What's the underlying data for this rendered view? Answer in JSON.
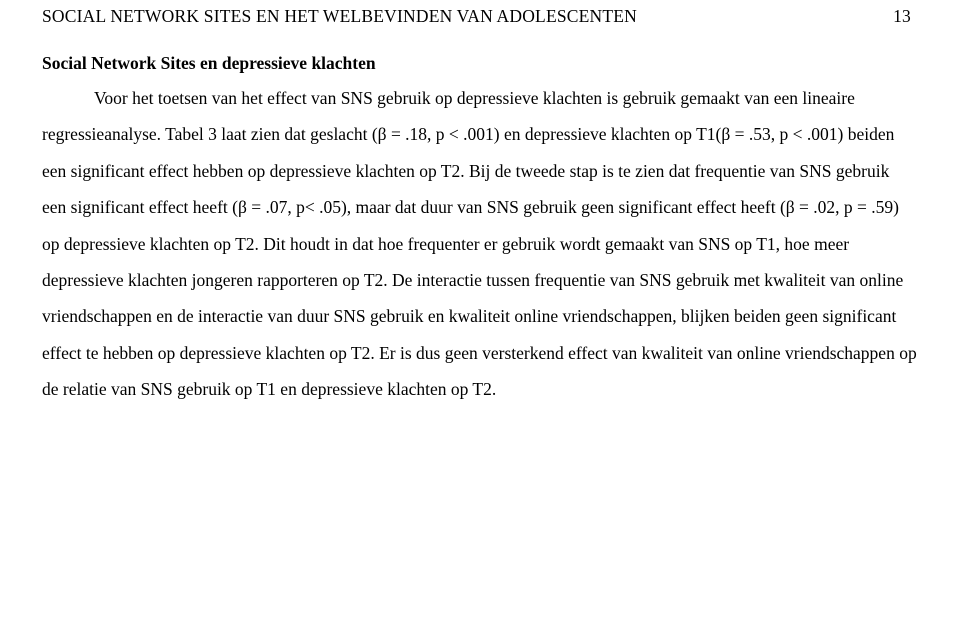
{
  "header": {
    "running_title": "SOCIAL NETWORK SITES EN HET WELBEVINDEN VAN ADOLESCENTEN",
    "page_number": "13"
  },
  "section": {
    "heading": "Social Network Sites en depressieve klachten",
    "paragraph": "Voor het toetsen van het effect van SNS gebruik op depressieve klachten is gebruik gemaakt van een lineaire regressieanalyse. Tabel 3 laat zien dat geslacht (β  = .18,  p < .001) en depressieve klachten op T1(β  = .53,  p < .001) beiden een significant effect hebben op depressieve klachten op T2. Bij de tweede stap is te zien dat frequentie van SNS gebruik een significant effect heeft (β  = .07, p< .05), maar dat duur van SNS gebruik geen significant effect heeft (β  = .02,  p = .59) op depressieve klachten op T2. Dit houdt in dat hoe frequenter er gebruik wordt gemaakt van SNS op T1, hoe meer depressieve klachten jongeren rapporteren op T2. De interactie tussen frequentie van SNS gebruik met kwaliteit van online vriendschappen en de interactie van duur SNS gebruik en kwaliteit online vriendschappen, blijken beiden geen significant effect te hebben op depressieve klachten op T2. Er is dus geen versterkend effect van kwaliteit van online vriendschappen op de relatie van SNS gebruik op T1 en depressieve klachten op T2."
  }
}
